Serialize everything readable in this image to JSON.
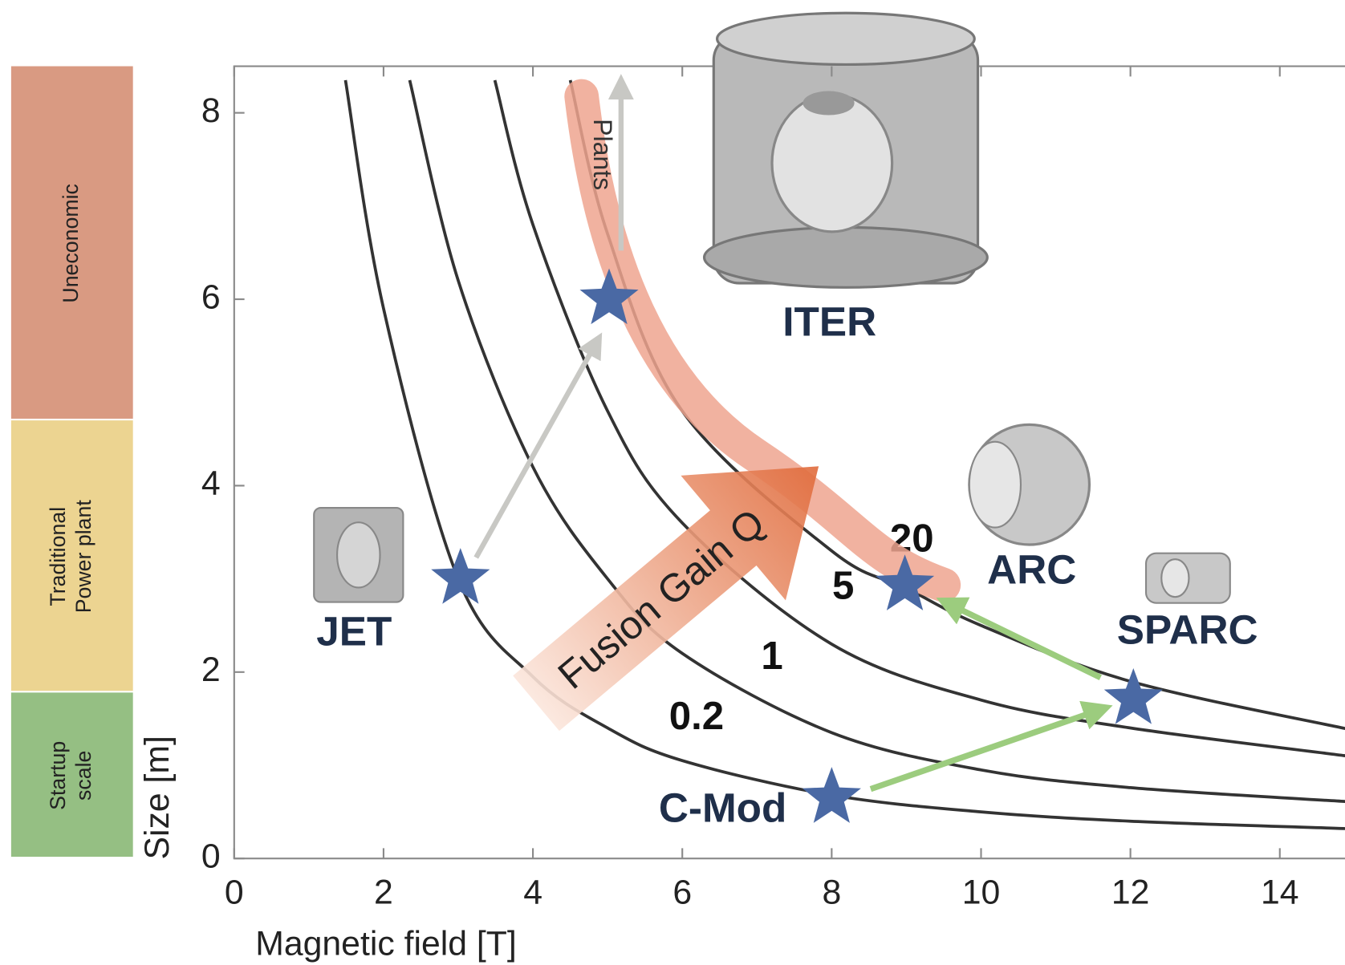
{
  "chart_data": {
    "type": "line",
    "x_label": "Magnetic field [T]",
    "y_label": "Size [m]",
    "xlim": [
      0,
      14.9
    ],
    "ylim": [
      0,
      8.5
    ],
    "xticks": [
      0,
      2,
      4,
      6,
      8,
      10,
      12,
      14
    ],
    "yticks": [
      0,
      2,
      4,
      6,
      8
    ],
    "series": [
      {
        "name": "0.2",
        "color": "#333333",
        "x": [
          1.49,
          2,
          3,
          4,
          5,
          6,
          8,
          10,
          12,
          14.9
        ],
        "values": [
          8.35,
          5.9,
          3.0,
          1.95,
          1.4,
          1.05,
          0.68,
          0.5,
          0.4,
          0.32
        ]
      },
      {
        "name": "1",
        "color": "#333333",
        "x": [
          2.35,
          3,
          4,
          5,
          6,
          8,
          10,
          12,
          14.9
        ],
        "values": [
          8.35,
          6.2,
          4.2,
          3.0,
          2.2,
          1.35,
          0.95,
          0.76,
          0.61
        ]
      },
      {
        "name": "5",
        "color": "#333333",
        "x": [
          3.49,
          4,
          5,
          6,
          8,
          10,
          12,
          14.9
        ],
        "values": [
          8.35,
          6.8,
          4.8,
          3.6,
          2.3,
          1.7,
          1.4,
          1.1
        ]
      },
      {
        "name": "20",
        "color": "#333333",
        "x": [
          4.5,
          5,
          6,
          8,
          9,
          10,
          12,
          14.9
        ],
        "values": [
          8.35,
          6.7,
          4.8,
          3.3,
          2.9,
          2.5,
          1.9,
          1.39
        ]
      }
    ],
    "points": {
      "color": "#4a69a4",
      "names": [
        "JET",
        "ITER",
        "ARC",
        "SPARC",
        "C-Mod"
      ],
      "x": [
        3.03,
        5.02,
        8.98,
        12.04,
        8.0
      ],
      "values": [
        3.0,
        6.0,
        2.93,
        1.71,
        0.65
      ]
    },
    "regions": [
      {
        "label": [
          "Uneconomic"
        ],
        "from": 4.7,
        "to": 8.5,
        "color": "#d99a82"
      },
      {
        "label": [
          "Traditional",
          "Power plant"
        ],
        "from": 1.78,
        "to": 4.7,
        "color": "#ecd491"
      },
      {
        "label": [
          "Startup",
          "scale"
        ],
        "from": 0,
        "to": 1.78,
        "color": "#95bf83"
      }
    ],
    "annotations": {
      "gain_arrow": "Fusion Gain Q",
      "plants": "Plants"
    }
  }
}
